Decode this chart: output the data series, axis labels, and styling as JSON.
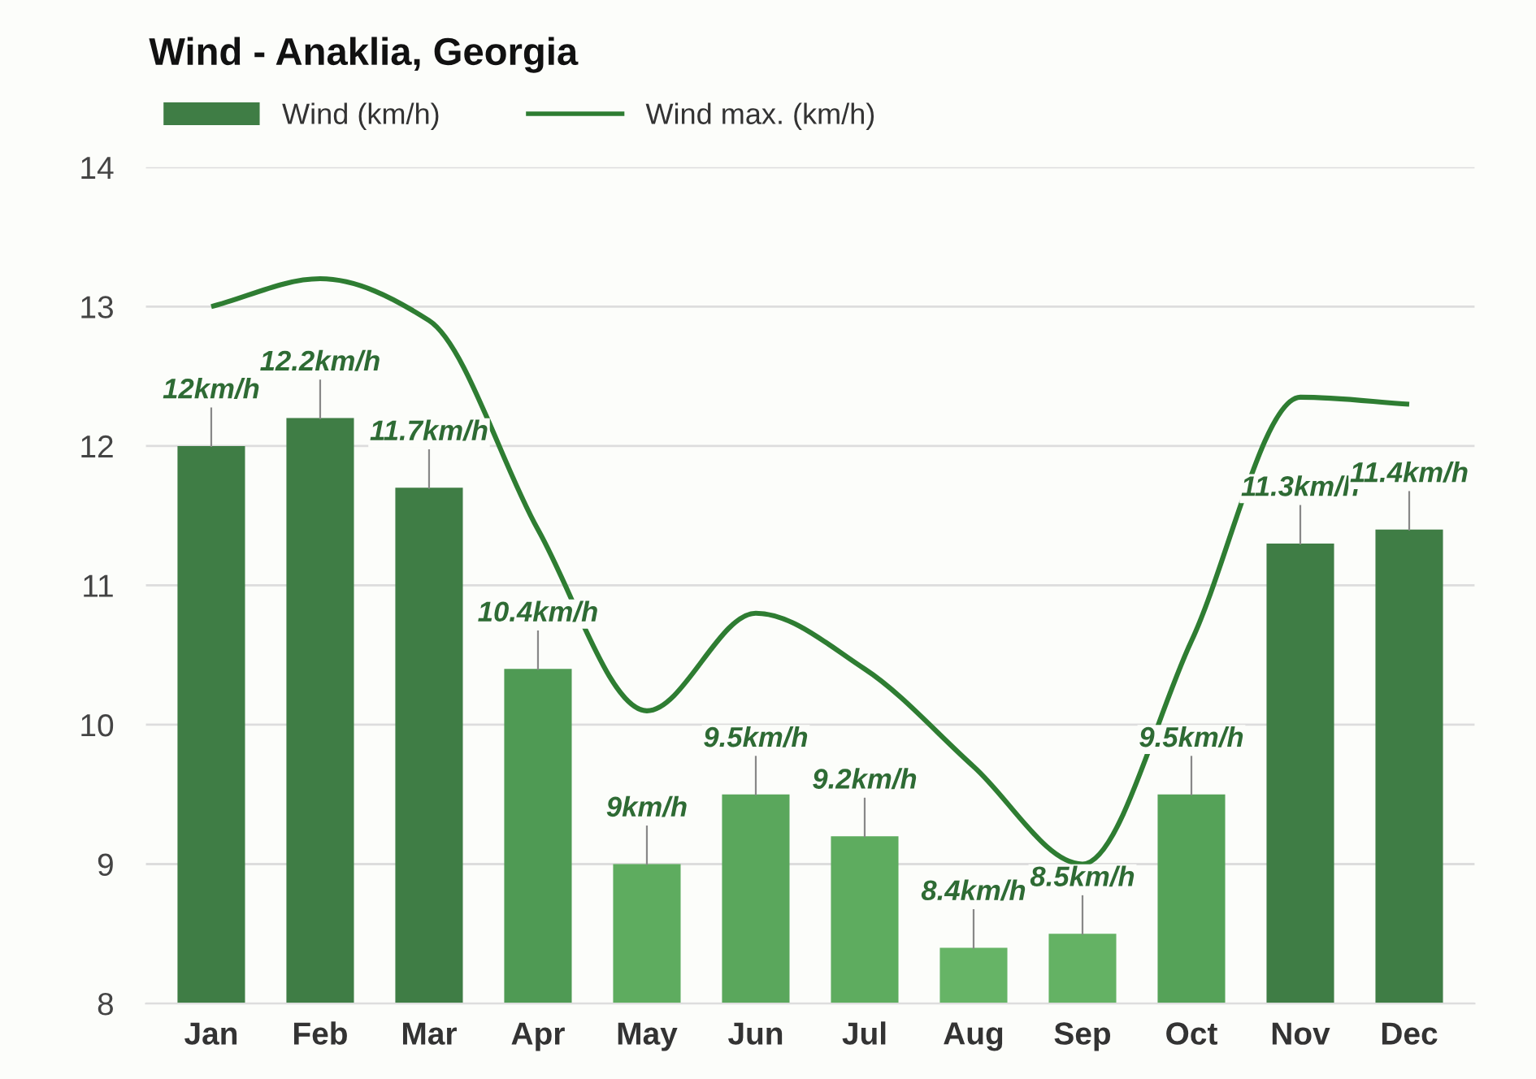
{
  "chart_data": {
    "type": "bar",
    "title": "Wind - Anaklia, Georgia",
    "categories": [
      "Jan",
      "Feb",
      "Mar",
      "Apr",
      "May",
      "Jun",
      "Jul",
      "Aug",
      "Sep",
      "Oct",
      "Nov",
      "Dec"
    ],
    "series": [
      {
        "name": "Wind (km/h)",
        "color": "#3f7d45",
        "colors": [
          "#3f7d45",
          "#3f7d45",
          "#3f7d45",
          "#4f9a54",
          "#5eac5f",
          "#5aa75c",
          "#5eac5f",
          "#66b466",
          "#64b264",
          "#55a258",
          "#3f7d45",
          "#3f7d45"
        ],
        "values": [
          12,
          12.2,
          11.7,
          10.4,
          9,
          9.5,
          9.2,
          8.4,
          8.5,
          9.5,
          11.3,
          11.4
        ],
        "value_labels": [
          "12km/h",
          "12.2km/h",
          "11.7km/h",
          "10.4km/h",
          "9km/h",
          "9.5km/h",
          "9.2km/h",
          "8.4km/h",
          "8.5km/h",
          "9.5km/h",
          "11.3km/h",
          "11.4km/h"
        ]
      },
      {
        "name": "Wind max. (km/h)",
        "type": "line",
        "color": "#2e7d32",
        "values": [
          13.0,
          13.2,
          12.9,
          11.4,
          10.1,
          10.8,
          10.4,
          9.7,
          9.0,
          10.6,
          12.35,
          12.3
        ]
      }
    ],
    "ylim": [
      8,
      14
    ],
    "yticks": [
      8,
      9,
      10,
      11,
      12,
      13,
      14
    ],
    "grid": "y",
    "legend": "top left"
  }
}
